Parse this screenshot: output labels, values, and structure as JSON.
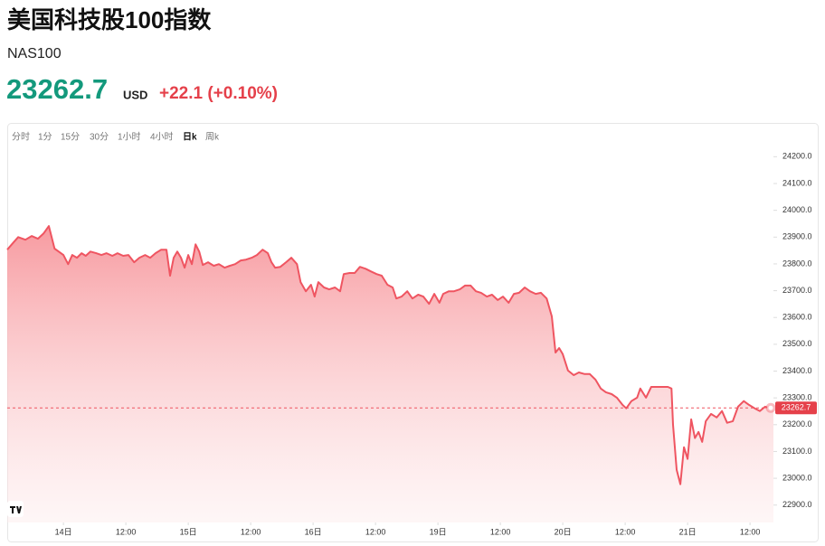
{
  "header": {
    "title": "美国科技股100指数",
    "symbol": "NAS100",
    "currency": "USD",
    "change": "+22.1 (+0.10%)"
  },
  "tabs": [
    "分时",
    "1分",
    "15分",
    "30分",
    "1小时",
    "4小时",
    "日k",
    "周k"
  ],
  "active_tab": 6,
  "chart_data": {
    "type": "area",
    "color": "#ef5561",
    "current_value": 23262.7,
    "xlim": [
      13.2,
      160.5
    ],
    "ylim": [
      22835,
      24245
    ],
    "xticks": [
      {
        "value": 24,
        "label": "14日"
      },
      {
        "value": 36,
        "label": "12:00"
      },
      {
        "value": 48,
        "label": "15日"
      },
      {
        "value": 60,
        "label": "12:00"
      },
      {
        "value": 72,
        "label": "16日"
      },
      {
        "value": 84,
        "label": "12:00"
      },
      {
        "value": 96,
        "label": "19日"
      },
      {
        "value": 108,
        "label": "12:00"
      },
      {
        "value": 120,
        "label": "20日"
      },
      {
        "value": 132,
        "label": "12:00"
      },
      {
        "value": 144,
        "label": "21日"
      },
      {
        "value": 156,
        "label": "12:00"
      }
    ],
    "yticks": [
      {
        "value": 22900,
        "label": "22900.0"
      },
      {
        "value": 23000,
        "label": "23000.0"
      },
      {
        "value": 23100,
        "label": "23100.0"
      },
      {
        "value": 23200,
        "label": "23200.0"
      },
      {
        "value": 23300,
        "label": "23300.0"
      },
      {
        "value": 23400,
        "label": "23400.0"
      },
      {
        "value": 23500,
        "label": "23500.0"
      },
      {
        "value": 23600,
        "label": "23600.0"
      },
      {
        "value": 23700,
        "label": "23700.0"
      },
      {
        "value": 23800,
        "label": "23800.0"
      },
      {
        "value": 23900,
        "label": "23900.0"
      },
      {
        "value": 24000,
        "label": "24000.0"
      },
      {
        "value": 24100,
        "label": "24100.0"
      },
      {
        "value": 24200,
        "label": "24200.0"
      }
    ],
    "x": [
      13.2,
      14.4,
      15.3,
      16.7,
      17.9,
      19.1,
      20.2,
      21.2,
      22.3,
      23.1,
      24,
      24.9,
      25.7,
      26.6,
      27.5,
      28.3,
      29.2,
      30.3,
      31.3,
      32.3,
      33.4,
      34.4,
      35.5,
      36.5,
      37.6,
      38.6,
      39.7,
      40.7,
      41.7,
      42.8,
      43.8,
      44.5,
      45.2,
      45.9,
      46.6,
      47.3,
      48.0,
      48.7,
      49.4,
      50.1,
      50.8,
      51.8,
      52.9,
      53.9,
      55.0,
      56.0,
      57.0,
      58.1,
      59.1,
      60.2,
      61.2,
      62.3,
      63.3,
      64.0,
      64.7,
      65.7,
      66.8,
      67.8,
      68.9,
      69.6,
      70.6,
      71.6,
      72.3,
      73.0,
      74.1,
      75.1,
      76.2,
      77.2,
      77.9,
      79.0,
      80.0,
      81.0,
      82.1,
      83.1,
      84.2,
      85.2,
      86.3,
      87.3,
      88.0,
      89.0,
      90.1,
      91.1,
      92.2,
      93.2,
      94.3,
      95.3,
      96.3,
      97.0,
      98.1,
      99.1,
      100.2,
      101.2,
      102.3,
      103.3,
      104.3,
      105.4,
      106.4,
      107.5,
      108.5,
      109.6,
      110.6,
      111.6,
      112.7,
      113.7,
      114.8,
      115.8,
      116.9,
      117.9,
      118.6,
      119.3,
      120.0,
      121.0,
      122.1,
      123.1,
      124.2,
      125.2,
      126.3,
      127.3,
      128.3,
      129.4,
      130.4,
      131.5,
      132.2,
      133.2,
      134.3,
      134.9,
      136.0,
      137.0,
      138.1,
      139.1,
      140.2,
      140.9,
      141.2,
      141.9,
      142.6,
      143.3,
      144.0,
      144.7,
      145.4,
      146.1,
      146.8,
      147.5,
      148.5,
      149.6,
      150.6,
      151.6,
      152.7,
      153.7,
      154.8,
      155.8,
      156.9,
      157.9,
      158.9,
      159.9,
      160.5
    ],
    "values": [
      23853,
      23880,
      23900,
      23890,
      23904,
      23894,
      23914,
      23941,
      23857,
      23846,
      23833,
      23799,
      23833,
      23823,
      23840,
      23830,
      23846,
      23840,
      23833,
      23840,
      23830,
      23840,
      23830,
      23833,
      23806,
      23823,
      23833,
      23823,
      23840,
      23853,
      23853,
      23756,
      23823,
      23846,
      23823,
      23786,
      23833,
      23799,
      23873,
      23846,
      23796,
      23806,
      23793,
      23799,
      23786,
      23793,
      23799,
      23813,
      23816,
      23823,
      23833,
      23853,
      23840,
      23806,
      23786,
      23789,
      23806,
      23823,
      23799,
      23732,
      23698,
      23722,
      23678,
      23732,
      23712,
      23705,
      23712,
      23698,
      23762,
      23766,
      23766,
      23789,
      23782,
      23772,
      23762,
      23756,
      23722,
      23712,
      23671,
      23678,
      23698,
      23671,
      23685,
      23678,
      23651,
      23688,
      23655,
      23688,
      23698,
      23698,
      23705,
      23719,
      23719,
      23698,
      23692,
      23678,
      23685,
      23665,
      23678,
      23655,
      23688,
      23692,
      23712,
      23698,
      23688,
      23692,
      23671,
      23604,
      23469,
      23486,
      23463,
      23402,
      23385,
      23395,
      23389,
      23389,
      23368,
      23335,
      23321,
      23314,
      23301,
      23274,
      23261,
      23288,
      23301,
      23335,
      23301,
      23341,
      23341,
      23341,
      23341,
      23335,
      23200,
      23032,
      22978,
      23116,
      23072,
      23220,
      23150,
      23173,
      23136,
      23213,
      23240,
      23227,
      23251,
      23207,
      23213,
      23267,
      23288,
      23274,
      23261,
      23251,
      23267,
      23261,
      23261
    ]
  }
}
